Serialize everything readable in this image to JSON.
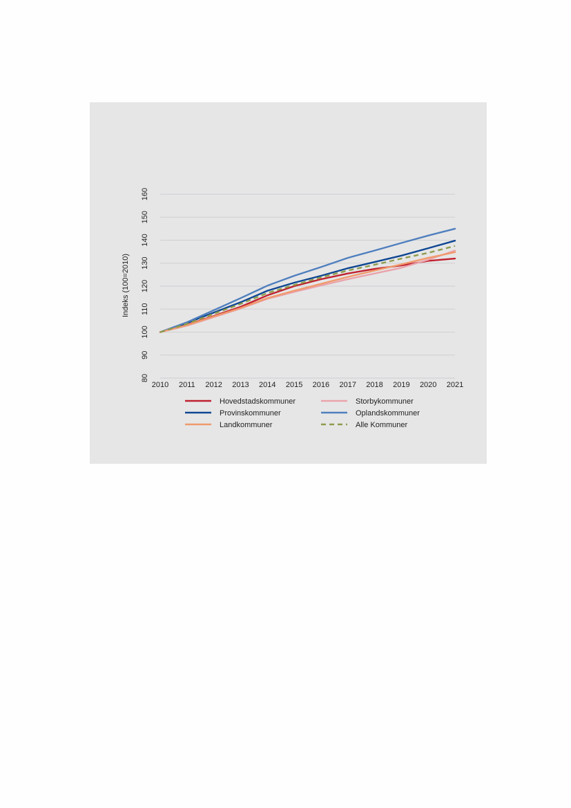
{
  "chart_data": {
    "type": "line",
    "title": "",
    "xlabel": "",
    "ylabel": "Indeks (100=2010)",
    "x": [
      "2010",
      "2011",
      "2012",
      "2013",
      "2014",
      "2015",
      "2016",
      "2017",
      "2018",
      "2019",
      "2020",
      "2021"
    ],
    "ylim": [
      80,
      160
    ],
    "yticks": [
      "80",
      "90",
      "100",
      "110",
      "120",
      "130",
      "140",
      "150",
      "160"
    ],
    "grid": "horizontal",
    "legend_position": "bottom",
    "series": [
      {
        "name": "Hovedstadskommuner",
        "color": "#c0202e",
        "dash": "solid",
        "values": [
          100,
          103.2,
          107,
          111,
          116,
          120,
          123,
          125.5,
          127.5,
          129,
          131,
          132
        ]
      },
      {
        "name": "Storbykommuner",
        "color": "#eaa3ab",
        "dash": "solid",
        "values": [
          100,
          102.8,
          106.5,
          110.3,
          114.5,
          117.5,
          120.3,
          123,
          125.5,
          128,
          131.5,
          135.5
        ]
      },
      {
        "name": "Provinskommuner",
        "color": "#0e4692",
        "dash": "solid",
        "values": [
          100,
          104,
          108.5,
          113,
          118,
          121.5,
          124.5,
          127.8,
          130.5,
          133.3,
          136.5,
          139.8
        ]
      },
      {
        "name": "Oplandskommuner",
        "color": "#4f7fbd",
        "dash": "solid",
        "values": [
          100,
          104.3,
          109.5,
          114.8,
          120.2,
          124.5,
          128.3,
          132.3,
          135.5,
          138.8,
          142,
          145
        ]
      },
      {
        "name": "Landkommuner",
        "color": "#f09a6d",
        "dash": "solid",
        "values": [
          100,
          103,
          106.8,
          110.5,
          114.8,
          118,
          121,
          124,
          126.8,
          129.5,
          132.3,
          134.8
        ]
      },
      {
        "name": "Alle Kommuner",
        "color": "#8e9c4c",
        "dash": "dashed",
        "values": [
          100,
          103.6,
          108,
          112.3,
          117,
          120.5,
          123.8,
          126.8,
          129.3,
          132,
          134.5,
          137.5
        ]
      }
    ]
  }
}
